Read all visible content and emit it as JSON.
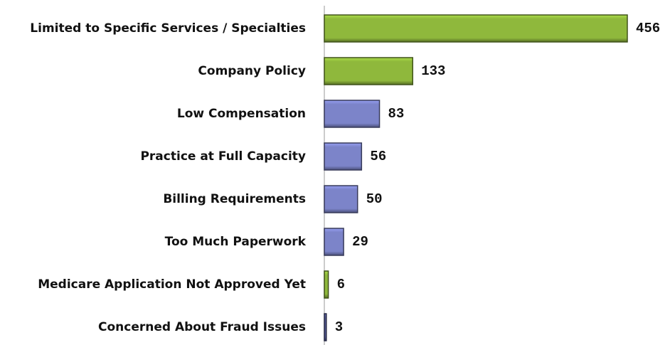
{
  "chart_data": {
    "type": "bar",
    "orientation": "horizontal",
    "categories": [
      "Limited to Specific Services / Specialties",
      "Company Policy",
      "Low Compensation",
      "Practice at Full Capacity",
      "Billing Requirements",
      "Too Much Paperwork",
      "Medicare Application Not Approved Yet",
      "Concerned About Fraud Issues"
    ],
    "values": [
      456,
      133,
      83,
      56,
      50,
      29,
      6,
      3
    ],
    "colors": [
      "#8fb83c",
      "#8fb83c",
      "#7c84c9",
      "#7c84c9",
      "#7c84c9",
      "#7c84c9",
      "#8fb83c",
      "#555a96"
    ]
  }
}
